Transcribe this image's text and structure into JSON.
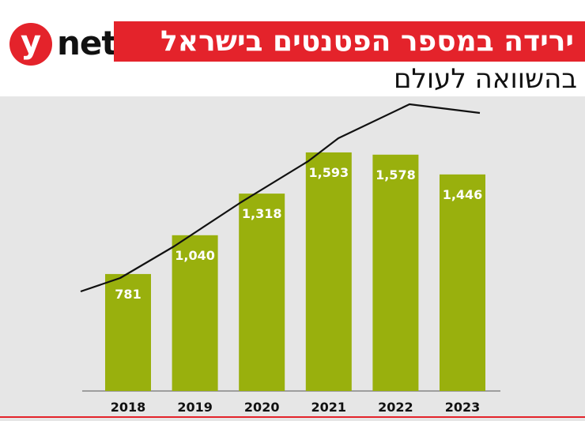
{
  "brand": {
    "logo_letter": "y",
    "logo_word": "net"
  },
  "header": {
    "title": "ירידה במספר הפטנטים בישראל",
    "subtitle": "בהשוואה לעולם"
  },
  "colors": {
    "brand_red": "#e4232b",
    "bar_green": "#99b00d",
    "plot_background": "#e6e6e6",
    "trend_line": "#111111"
  },
  "chart_data": {
    "type": "bar",
    "categories": [
      "2018",
      "2019",
      "2020",
      "2021",
      "2022",
      "2023"
    ],
    "series": [
      {
        "values": [
          781,
          1040,
          1318,
          1593,
          1578,
          1446
        ],
        "labels": [
          "781",
          "1,040",
          "1,318",
          "1,593",
          "1,578",
          "1,446"
        ]
      }
    ],
    "overlay_line": {
      "type": "line",
      "note_values_unscaled": true
    },
    "ylim": [
      0,
      1800
    ],
    "grid": false,
    "legend": "none"
  }
}
